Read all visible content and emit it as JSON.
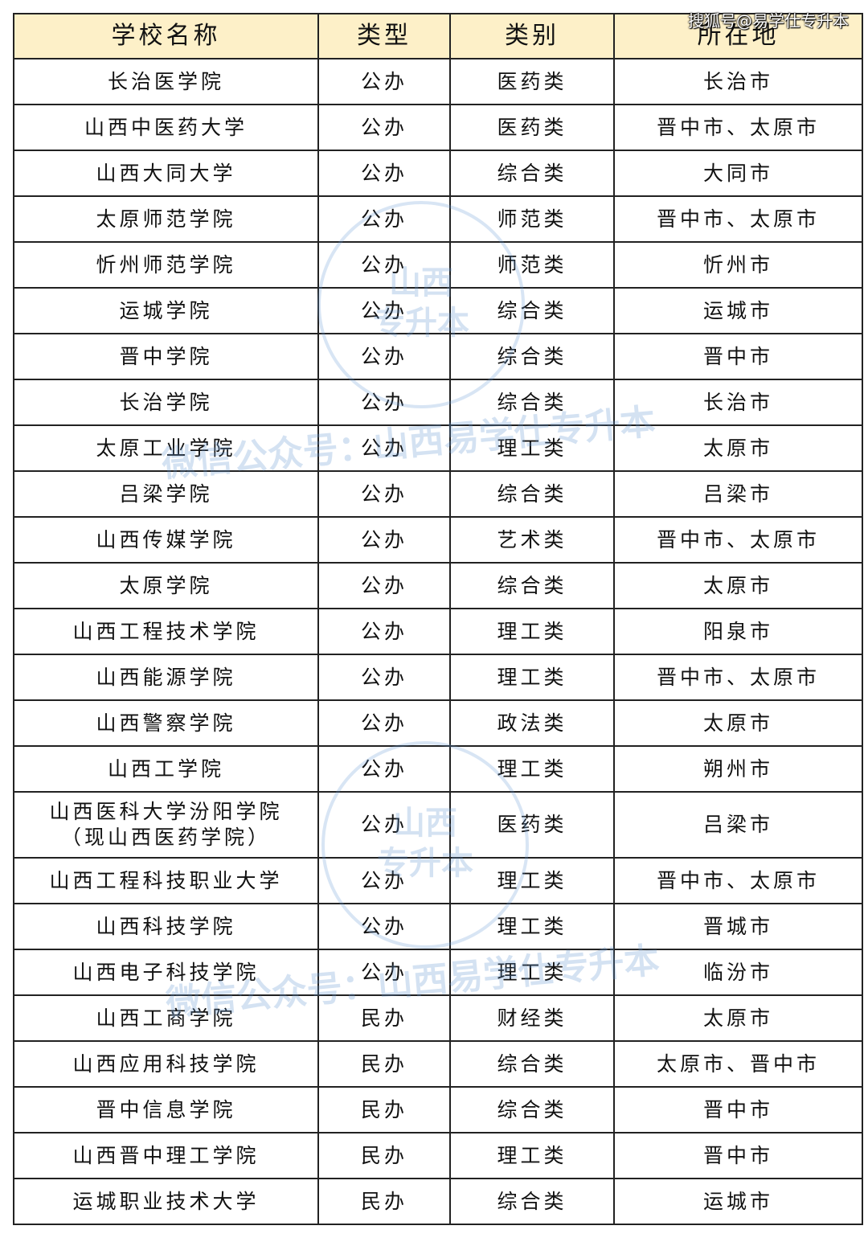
{
  "table": {
    "headers": [
      "学校名称",
      "类型",
      "类别",
      "所在地"
    ],
    "rows": [
      [
        "长治医学院",
        "公办",
        "医药类",
        "长治市"
      ],
      [
        "山西中医药大学",
        "公办",
        "医药类",
        "晋中市、太原市"
      ],
      [
        "山西大同大学",
        "公办",
        "综合类",
        "大同市"
      ],
      [
        "太原师范学院",
        "公办",
        "师范类",
        "晋中市、太原市"
      ],
      [
        "忻州师范学院",
        "公办",
        "师范类",
        "忻州市"
      ],
      [
        "运城学院",
        "公办",
        "综合类",
        "运城市"
      ],
      [
        "晋中学院",
        "公办",
        "综合类",
        "晋中市"
      ],
      [
        "长治学院",
        "公办",
        "综合类",
        "长治市"
      ],
      [
        "太原工业学院",
        "公办",
        "理工类",
        "太原市"
      ],
      [
        "吕梁学院",
        "公办",
        "综合类",
        "吕梁市"
      ],
      [
        "山西传媒学院",
        "公办",
        "艺术类",
        "晋中市、太原市"
      ],
      [
        "太原学院",
        "公办",
        "综合类",
        "太原市"
      ],
      [
        "山西工程技术学院",
        "公办",
        "理工类",
        "阳泉市"
      ],
      [
        "山西能源学院",
        "公办",
        "理工类",
        "晋中市、太原市"
      ],
      [
        "山西警察学院",
        "公办",
        "政法类",
        "太原市"
      ],
      [
        "山西工学院",
        "公办",
        "理工类",
        "朔州市"
      ],
      [
        "山西医科大学汾阳学院\n（现山西医药学院）",
        "公办",
        "医药类",
        "吕梁市"
      ],
      [
        "山西工程科技职业大学",
        "公办",
        "理工类",
        "晋中市、太原市"
      ],
      [
        "山西科技学院",
        "公办",
        "理工类",
        "晋城市"
      ],
      [
        "山西电子科技学院",
        "公办",
        "理工类",
        "临汾市"
      ],
      [
        "山西工商学院",
        "民办",
        "财经类",
        "太原市"
      ],
      [
        "山西应用科技学院",
        "民办",
        "综合类",
        "太原市、晋中市"
      ],
      [
        "晋中信息学院",
        "民办",
        "综合类",
        "晋中市"
      ],
      [
        "山西晋中理工学院",
        "民办",
        "理工类",
        "晋中市"
      ],
      [
        "运城职业技术大学",
        "民办",
        "综合类",
        "运城市"
      ]
    ]
  },
  "watermarks": {
    "corner": "搜狐号@易学仕专升本",
    "line": "微信公众号：山西易学仕专升本",
    "seal_top": "山西",
    "seal_bottom": "专升本"
  },
  "colors": {
    "header_bg": "#fdf0c8",
    "watermark": "#6496d2"
  }
}
